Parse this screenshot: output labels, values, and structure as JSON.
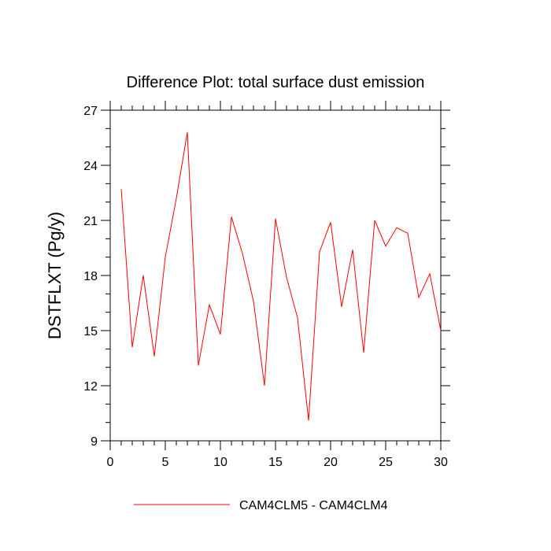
{
  "chart_data": {
    "type": "line",
    "title": "Difference Plot: total surface dust emission",
    "xlabel": "",
    "ylabel": "DSTFLXT  (Pg/y)",
    "xlim": [
      0,
      30
    ],
    "ylim": [
      9,
      27
    ],
    "xticks": [
      0,
      5,
      10,
      15,
      20,
      25,
      30
    ],
    "yticks": [
      9,
      12,
      15,
      18,
      21,
      24,
      27
    ],
    "grid": false,
    "legend_position": "bottom",
    "series": [
      {
        "name": "CAM4CLM5 - CAM4CLM4",
        "color": "#ff0000",
        "x": [
          1,
          2,
          3,
          4,
          5,
          6,
          7,
          8,
          9,
          10,
          11,
          12,
          13,
          14,
          15,
          16,
          17,
          18,
          19,
          20,
          21,
          22,
          23,
          24,
          25,
          26,
          27,
          28,
          29,
          30
        ],
        "values": [
          22.7,
          14.1,
          18.0,
          13.6,
          19.0,
          22.2,
          25.8,
          13.1,
          16.4,
          14.8,
          21.2,
          19.2,
          16.6,
          12.0,
          21.1,
          17.9,
          15.7,
          10.1,
          19.3,
          20.9,
          16.3,
          19.4,
          13.8,
          21.0,
          19.6,
          20.6,
          20.3,
          16.8,
          18.1,
          15.0
        ]
      }
    ]
  }
}
